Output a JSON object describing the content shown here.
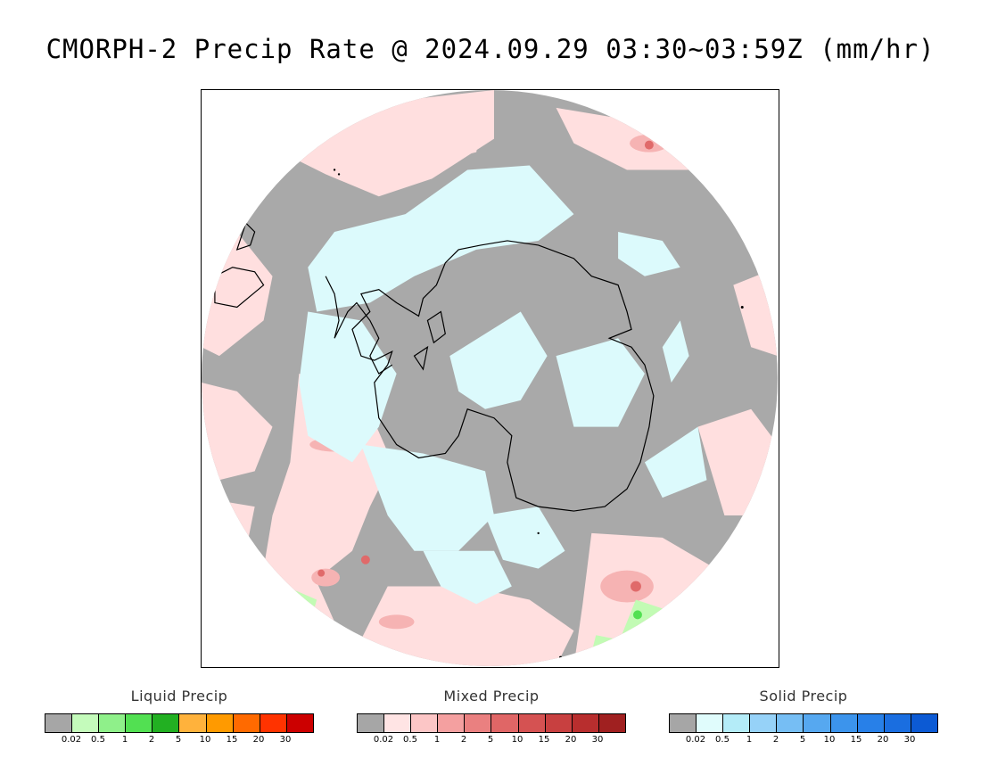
{
  "title": "CMORPH-2 Precip Rate @ 2024.09.29 03:30~03:59Z (mm/hr)",
  "map": {
    "projection": "south polar stereographic",
    "colors": {
      "no_precip": "#a9a9a9",
      "mixed_light": "#ffdfdf",
      "mixed_moderate": "#f6b3b3",
      "mixed_heavy": "#e06a6a",
      "solid_light": "#dcfafc",
      "liquid_light": "#c2fbb4",
      "liquid_moderate": "#52e052",
      "coastline": "#000000"
    }
  },
  "legends": [
    {
      "title": "Liquid Precip",
      "colors": [
        "#a6a6a6",
        "#c4fbbb",
        "#8ff08a",
        "#52e052",
        "#22b022",
        "#ffb23c",
        "#ff9a00",
        "#ff6a00",
        "#ff3300",
        "#cc0000"
      ],
      "ticks": [
        "0.02",
        "0.5",
        "1",
        "2",
        "5",
        "10",
        "15",
        "20",
        "30"
      ]
    },
    {
      "title": "Mixed Precip",
      "colors": [
        "#a6a6a6",
        "#ffe4e4",
        "#fcc6c6",
        "#f4a0a0",
        "#ea8080",
        "#e06666",
        "#d55252",
        "#c84040",
        "#b82e2e",
        "#a02020"
      ],
      "ticks": [
        "0.02",
        "0.5",
        "1",
        "2",
        "5",
        "10",
        "15",
        "20",
        "30"
      ]
    },
    {
      "title": "Solid Precip",
      "colors": [
        "#a6a6a6",
        "#e0fcfc",
        "#b4ecf8",
        "#96d2f8",
        "#76bef4",
        "#56a8f0",
        "#3c94ec",
        "#2880e8",
        "#1a6ee0",
        "#0c5ad4"
      ],
      "ticks": [
        "0.02",
        "0.5",
        "1",
        "2",
        "5",
        "10",
        "15",
        "20",
        "30"
      ]
    }
  ]
}
